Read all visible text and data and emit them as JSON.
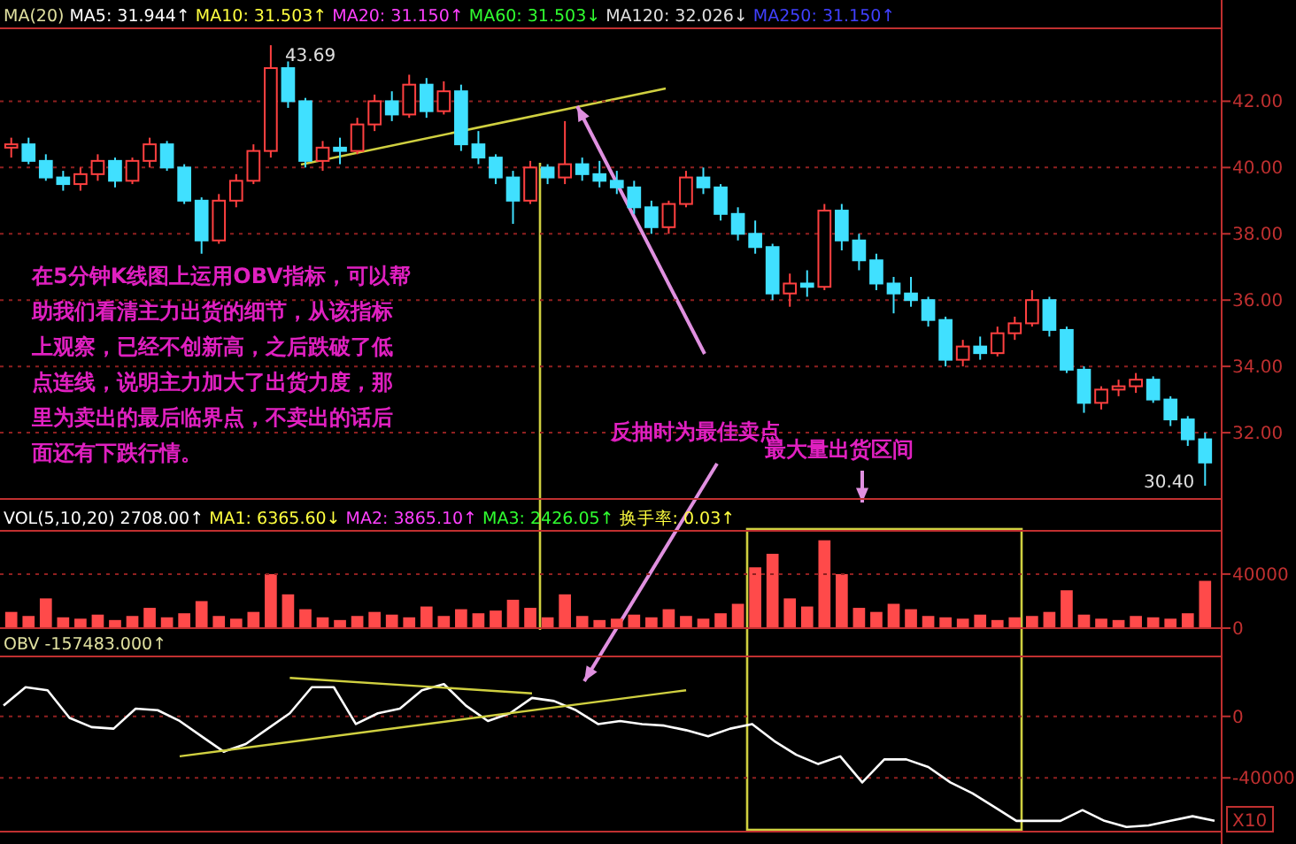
{
  "chart_data": [
    {
      "type": "candlestick",
      "categories": [
        null,
        null,
        null,
        null,
        null,
        null,
        null,
        null,
        null,
        null,
        null,
        null,
        null,
        null,
        null,
        null,
        null,
        null,
        null,
        null,
        null,
        null,
        null,
        null,
        null,
        null,
        null,
        null,
        null,
        null,
        null,
        null,
        null,
        null,
        null,
        null,
        null,
        null,
        null,
        null,
        null,
        null,
        null,
        null,
        null,
        null,
        null,
        null,
        null,
        null,
        null,
        null,
        null,
        null,
        null,
        null,
        null,
        null,
        null,
        null,
        null,
        null,
        null,
        null,
        null,
        null,
        null,
        null,
        null,
        null
      ],
      "ohlc": [
        [
          40.6,
          40.9,
          40.3,
          40.7
        ],
        [
          40.7,
          40.9,
          40.1,
          40.2
        ],
        [
          40.2,
          40.4,
          39.6,
          39.7
        ],
        [
          39.7,
          39.9,
          39.3,
          39.5
        ],
        [
          39.5,
          40.0,
          39.3,
          39.8
        ],
        [
          39.8,
          40.4,
          39.6,
          40.2
        ],
        [
          40.2,
          40.3,
          39.4,
          39.6
        ],
        [
          39.6,
          40.3,
          39.5,
          40.2
        ],
        [
          40.2,
          40.9,
          40.0,
          40.7
        ],
        [
          40.7,
          40.8,
          39.9,
          40.0
        ],
        [
          40.0,
          40.1,
          38.9,
          39.0
        ],
        [
          39.0,
          39.1,
          37.4,
          37.8
        ],
        [
          37.8,
          39.2,
          37.7,
          39.0
        ],
        [
          39.0,
          39.8,
          38.8,
          39.6
        ],
        [
          39.6,
          40.7,
          39.5,
          40.5
        ],
        [
          40.5,
          43.69,
          40.3,
          43.0
        ],
        [
          43.0,
          43.2,
          41.8,
          42.0
        ],
        [
          42.0,
          42.1,
          40.0,
          40.2
        ],
        [
          40.2,
          40.8,
          39.9,
          40.6
        ],
        [
          40.6,
          40.9,
          40.1,
          40.5
        ],
        [
          40.5,
          41.5,
          40.4,
          41.3
        ],
        [
          41.3,
          42.2,
          41.1,
          42.0
        ],
        [
          42.0,
          42.3,
          41.4,
          41.6
        ],
        [
          41.6,
          42.8,
          41.5,
          42.5
        ],
        [
          42.5,
          42.7,
          41.5,
          41.7
        ],
        [
          41.7,
          42.6,
          41.6,
          42.3
        ],
        [
          42.3,
          42.5,
          40.5,
          40.7
        ],
        [
          40.7,
          41.1,
          40.1,
          40.3
        ],
        [
          40.3,
          40.4,
          39.5,
          39.7
        ],
        [
          39.7,
          39.9,
          38.3,
          39.0
        ],
        [
          39.0,
          40.2,
          38.9,
          40.0
        ],
        [
          40.0,
          40.1,
          39.5,
          39.7
        ],
        [
          39.7,
          41.4,
          39.5,
          40.1
        ],
        [
          40.1,
          40.3,
          39.6,
          39.8
        ],
        [
          39.8,
          40.2,
          39.4,
          39.6
        ],
        [
          39.6,
          39.9,
          39.2,
          39.4
        ],
        [
          39.4,
          39.6,
          38.6,
          38.8
        ],
        [
          38.8,
          39.0,
          38.0,
          38.2
        ],
        [
          38.2,
          39.0,
          38.0,
          38.9
        ],
        [
          38.9,
          39.9,
          38.8,
          39.7
        ],
        [
          39.7,
          40.0,
          39.2,
          39.4
        ],
        [
          39.4,
          39.5,
          38.4,
          38.6
        ],
        [
          38.6,
          38.8,
          37.8,
          38.0
        ],
        [
          38.0,
          38.4,
          37.4,
          37.6
        ],
        [
          37.6,
          37.7,
          36.0,
          36.2
        ],
        [
          36.2,
          36.8,
          35.8,
          36.5
        ],
        [
          36.5,
          36.9,
          36.1,
          36.4
        ],
        [
          36.4,
          38.9,
          36.3,
          38.7
        ],
        [
          38.7,
          38.9,
          37.5,
          37.8
        ],
        [
          37.8,
          38.0,
          36.9,
          37.2
        ],
        [
          37.2,
          37.4,
          36.3,
          36.5
        ],
        [
          36.5,
          36.7,
          35.6,
          36.2
        ],
        [
          36.2,
          36.7,
          35.8,
          36.0
        ],
        [
          36.0,
          36.1,
          35.2,
          35.4
        ],
        [
          35.4,
          35.5,
          34.0,
          34.2
        ],
        [
          34.2,
          34.8,
          34.0,
          34.6
        ],
        [
          34.6,
          34.9,
          34.2,
          34.4
        ],
        [
          34.4,
          35.2,
          34.3,
          35.0
        ],
        [
          35.0,
          35.5,
          34.8,
          35.3
        ],
        [
          35.3,
          36.3,
          35.2,
          36.0
        ],
        [
          36.0,
          36.1,
          34.9,
          35.1
        ],
        [
          35.1,
          35.2,
          33.8,
          33.9
        ],
        [
          33.9,
          34.0,
          32.6,
          32.9
        ],
        [
          32.9,
          33.4,
          32.7,
          33.3
        ],
        [
          33.3,
          33.6,
          33.1,
          33.4
        ],
        [
          33.4,
          33.8,
          33.2,
          33.6
        ],
        [
          33.6,
          33.7,
          32.9,
          33.0
        ],
        [
          33.0,
          33.1,
          32.2,
          32.4
        ],
        [
          32.4,
          32.5,
          31.6,
          31.8
        ],
        [
          31.8,
          32.0,
          30.4,
          31.1
        ]
      ],
      "ylim": [
        30,
        44.2
      ],
      "yticks": [
        {
          "value": 32,
          "label": "32.00"
        },
        {
          "value": 34,
          "label": "34.00"
        },
        {
          "value": 36,
          "label": "36.00"
        },
        {
          "value": 38,
          "label": "38.00"
        },
        {
          "value": 40,
          "label": "40.00"
        },
        {
          "value": 42,
          "label": "42.00"
        }
      ],
      "grid": "y",
      "annotations": [
        "MA(20)",
        "MA5: 31.944↑",
        "MA10: 31.503↑",
        "MA20: 31.150↑",
        "MA60: 31.503↓",
        "MA120: 32.026↓",
        "MA250: 31.150↑",
        "43.69",
        "30.40",
        "在5分钟K线图上运用OBV指标，可以帮助我们看清主力出货的细节，从该指标上观察，已经不创新高，之后跌破了低点连线，说明主力加大了出货力度，那里为卖出的最后临界点，不卖出的话后面还有下跌行情。",
        "反抽时为最佳卖点",
        "最大量出货区间"
      ]
    },
    {
      "type": "bar",
      "categories": [
        null,
        null,
        null,
        null,
        null,
        null,
        null,
        null,
        null,
        null,
        null,
        null,
        null,
        null,
        null,
        null,
        null,
        null,
        null,
        null,
        null,
        null,
        null,
        null,
        null,
        null,
        null,
        null,
        null,
        null,
        null,
        null,
        null,
        null,
        null,
        null,
        null,
        null,
        null,
        null,
        null,
        null,
        null,
        null,
        null,
        null,
        null,
        null,
        null,
        null,
        null,
        null,
        null,
        null,
        null,
        null,
        null,
        null,
        null,
        null,
        null,
        null,
        null,
        null,
        null,
        null,
        null,
        null,
        null,
        null
      ],
      "values": [
        12000,
        9000,
        22000,
        8000,
        7000,
        10000,
        6000,
        9000,
        15000,
        8000,
        11000,
        20000,
        9000,
        7000,
        12000,
        40000,
        25000,
        14000,
        8000,
        6000,
        9000,
        12000,
        10000,
        8000,
        16000,
        9000,
        14000,
        11000,
        13000,
        21000,
        15000,
        8000,
        25000,
        9000,
        6000,
        7000,
        10000,
        8000,
        14000,
        9000,
        7000,
        11000,
        18000,
        45000,
        55000,
        22000,
        16000,
        65000,
        40000,
        15000,
        12000,
        18000,
        14000,
        9000,
        8000,
        7000,
        10000,
        6000,
        8000,
        9000,
        12000,
        28000,
        10000,
        7000,
        6000,
        9000,
        8000,
        7000,
        11000,
        35000
      ],
      "color": "#ff4a4a",
      "ylim": [
        0,
        72000
      ],
      "yticks": [
        0,
        40000
      ],
      "ref_lines": [
        {
          "axis": "y",
          "value": 40000,
          "color": "#902020",
          "line_style": "dotted"
        }
      ],
      "annotations": [
        "VOL(5,10,20)  2708.00↑",
        "MA1: 6365.60↓",
        "MA2: 3865.10↑",
        "MA3: 2426.05↑",
        "换手率: 0.03↑"
      ]
    },
    {
      "type": "line",
      "categories": [
        null,
        null,
        null,
        null,
        null,
        null,
        null,
        null,
        null,
        null,
        null,
        null,
        null,
        null,
        null,
        null,
        null,
        null,
        null,
        null,
        null,
        null,
        null,
        null,
        null,
        null,
        null,
        null,
        null,
        null,
        null,
        null,
        null,
        null,
        null,
        null,
        null,
        null,
        null,
        null,
        null,
        null,
        null,
        null,
        null,
        null,
        null,
        null,
        null,
        null,
        null,
        null,
        null,
        null,
        null,
        null
      ],
      "series": [
        {
          "color": "#ffffff",
          "values": [
            7000,
            19000,
            17000,
            -1000,
            -7000,
            -8000,
            5000,
            4000,
            -3000,
            -13000,
            -23000,
            -18000,
            -8000,
            2000,
            19000,
            19000,
            -5000,
            2000,
            5000,
            17000,
            21000,
            7000,
            -3000,
            2000,
            12000,
            10000,
            4000,
            -5000,
            -3000,
            -5000,
            -6000,
            -9000,
            -13000,
            -8000,
            -5000,
            -16000,
            -25000,
            -31000,
            -26000,
            -43000,
            -28000,
            -28000,
            -33000,
            -43000,
            -50000,
            -59000,
            -68000,
            -68000,
            -68000,
            -61000,
            -68000,
            -72000,
            -71000,
            -68000,
            -65000,
            -68000
          ]
        },
        {
          "type": "line",
          "values": [
            null,
            null,
            null,
            null,
            null,
            null,
            null,
            null,
            -26000,
            null,
            null,
            null,
            null,
            null,
            null,
            null,
            null,
            null,
            null,
            null,
            null,
            null,
            null,
            null,
            null,
            null,
            null,
            null,
            null,
            null,
            null,
            17000,
            null,
            null,
            null,
            null,
            null,
            null,
            null,
            null,
            null,
            null,
            null,
            null,
            null,
            null,
            null,
            null,
            null,
            null,
            null,
            null,
            null,
            null,
            null,
            null
          ],
          "color": "#d0d040"
        },
        {
          "type": "line",
          "values": [
            null,
            null,
            null,
            null,
            null,
            null,
            null,
            null,
            null,
            null,
            null,
            null,
            null,
            25000,
            null,
            null,
            null,
            null,
            null,
            null,
            null,
            null,
            null,
            null,
            15000,
            null,
            null,
            null,
            null,
            null,
            null,
            null,
            null,
            null,
            null,
            null,
            null,
            null,
            null,
            null,
            null,
            null,
            null,
            null,
            null,
            null,
            null,
            null,
            null,
            null,
            null,
            null,
            null,
            null,
            null,
            null
          ],
          "color": "#d0d040"
        }
      ],
      "ylim": [
        -75000,
        39000
      ],
      "yticks": [
        -40000,
        0
      ],
      "grid": "y",
      "annotations": [
        "OBV  -157483.000↑",
        "X10"
      ]
    }
  ]
}
